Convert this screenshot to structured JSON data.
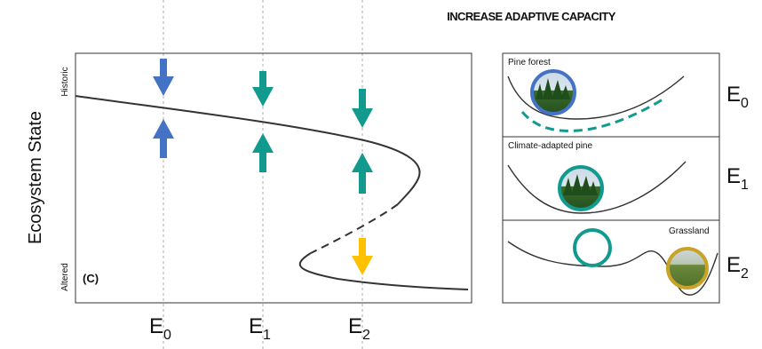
{
  "header": {
    "title": "INCREASE ADAPTIVE CAPACITY"
  },
  "left_panel": {
    "y_axis_label": "Ecosystem State",
    "y_top_label": "Historic",
    "y_bottom_label": "Altered",
    "panel_label": "(C)",
    "x_ticks": [
      {
        "base": "E",
        "sub": "0"
      },
      {
        "base": "E",
        "sub": "1"
      },
      {
        "base": "E",
        "sub": "2"
      }
    ]
  },
  "right_panels": [
    {
      "label": "Pine forest",
      "state": {
        "base": "E",
        "sub": "0"
      }
    },
    {
      "label": "Climate-adapted pine",
      "state": {
        "base": "E",
        "sub": "1"
      }
    },
    {
      "label": "Grassland",
      "state": {
        "base": "E",
        "sub": "2"
      }
    }
  ],
  "colors": {
    "blue": "#4472C4",
    "teal": "#139A8E",
    "gold": "#FFC000",
    "line": "#333333",
    "grass_ring": "#C9A227"
  }
}
